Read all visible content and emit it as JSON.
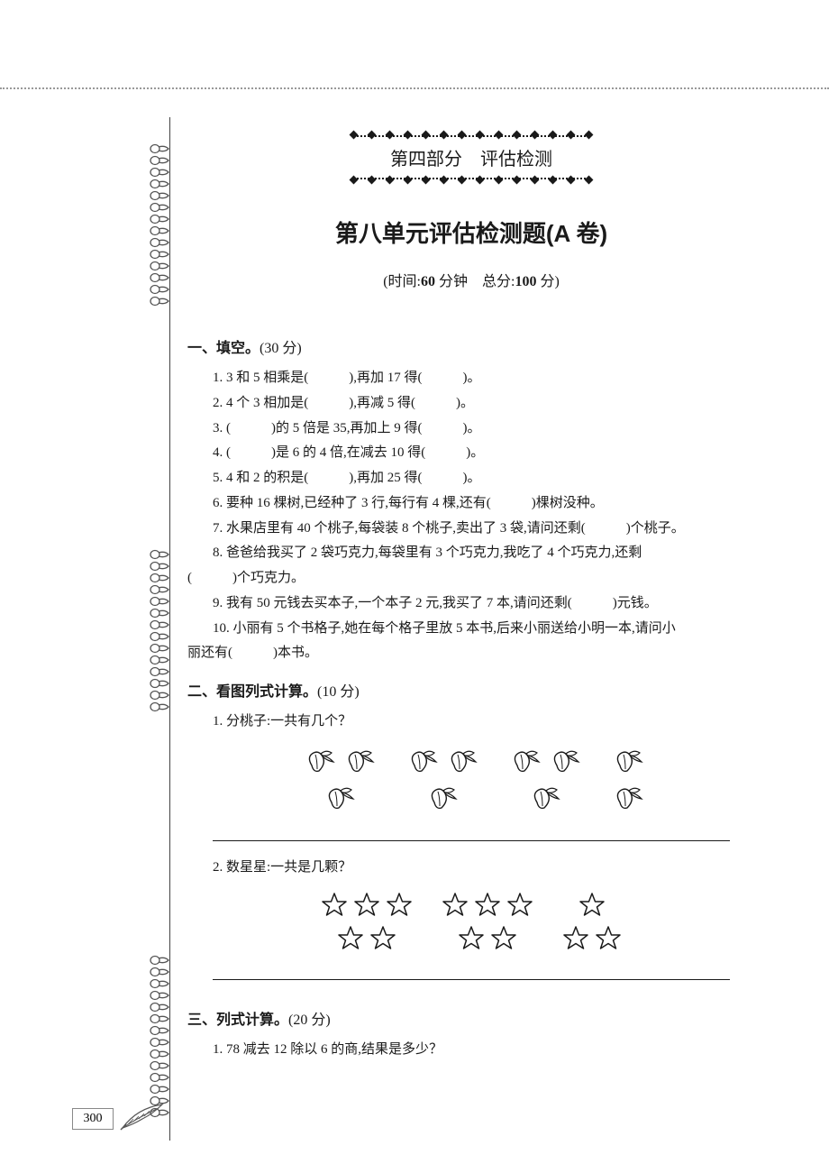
{
  "banner": "第四部分　评估检测",
  "title": "第八单元评估检测题(A 卷)",
  "subtitle_prefix": "(时间:",
  "subtitle_time": "60",
  "subtitle_mid": " 分钟　总分:",
  "subtitle_score": "100",
  "subtitle_suffix": " 分)",
  "s1": {
    "head": "一、填空。",
    "pts": "(30 分)"
  },
  "q1_1": "1. 3 和 5 相乘是(　　　),再加 17 得(　　　)。",
  "q1_2": "2. 4 个 3 相加是(　　　),再减 5 得(　　　)。",
  "q1_3": "3. (　　　)的 5 倍是 35,再加上 9 得(　　　)。",
  "q1_4": "4. (　　　)是 6 的 4 倍,在减去 10 得(　　　)。",
  "q1_5": "5. 4 和 2 的积是(　　　),再加 25 得(　　　)。",
  "q1_6": "6. 要种 16 棵树,已经种了 3 行,每行有 4 棵,还有(　　　)棵树没种。",
  "q1_7": "7. 水果店里有 40 个桃子,每袋装 8 个桃子,卖出了 3 袋,请问还剩(　　　)个桃子。",
  "q1_8a": "8. 爸爸给我买了 2 袋巧克力,每袋里有 3 个巧克力,我吃了 4 个巧克力,还剩",
  "q1_8b": "(　　　)个巧克力。",
  "q1_9": "9. 我有 50 元钱去买本子,一个本子 2 元,我买了 7 本,请问还剩(　　　)元钱。",
  "q1_10a": "10. 小丽有 5 个书格子,她在每个格子里放 5 本书,后来小丽送给小明一本,请问小",
  "q1_10b": "丽还有(　　　)本书。",
  "s2": {
    "head": "二、看图列式计算。",
    "pts": "(10 分)"
  },
  "q2_1": "1. 分桃子:一共有几个？",
  "q2_2": "2. 数星星:一共是几颗？",
  "s3": {
    "head": "三、列式计算。",
    "pts": "(20 分)"
  },
  "q3_1": "1. 78 减去 12 除以 6 的商,结果是多少？",
  "page_num": "300",
  "colors": {
    "text": "#1a1a1a",
    "border": "#888888",
    "dotted": "#999999"
  },
  "peach_groups": [
    [
      2,
      1
    ],
    [
      2,
      1
    ],
    [
      2,
      1
    ],
    [
      1,
      1
    ]
  ],
  "star_groups": [
    [
      3,
      2
    ],
    [
      3,
      2
    ],
    [
      1,
      2
    ]
  ]
}
